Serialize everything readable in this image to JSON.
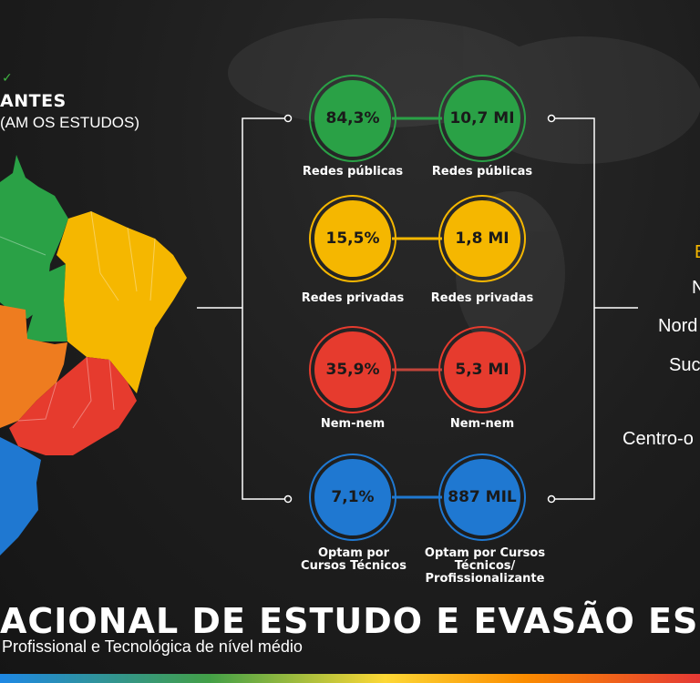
{
  "header": {
    "title": "ANTES",
    "subtitle": "(AM OS ESTUDOS)"
  },
  "colors": {
    "green": "#2aa146",
    "yellow": "#f5b700",
    "red": "#e63b2e",
    "blue": "#1f78d1",
    "orange": "#ee7c1f"
  },
  "rows": [
    {
      "percent": "84,3%",
      "count": "10,7 MI",
      "left_label": "Redes públicas",
      "right_label": "Redes públicas"
    },
    {
      "percent": "15,5%",
      "count": "1,8 MI",
      "left_label": "Redes privadas",
      "right_label": "Redes privadas"
    },
    {
      "percent": "35,9%",
      "count": "5,3 MI",
      "left_label": "Nem-nem",
      "right_label": "Nem-nem"
    },
    {
      "percent": "7,1%",
      "count": "887 MIL",
      "left_label": "Optam por Cursos Técnicos",
      "right_label": "Optam por Cursos Técnicos/ Profissionalizante"
    }
  ],
  "regions": {
    "r0": "E",
    "r1": "N",
    "r2": "Nord",
    "r3": "Suc",
    "r4": "Centro-o"
  },
  "footer": {
    "title": "ACIONAL DE ESTUDO E EVASÃO ESC",
    "subtitle": "Profissional e Tecnológica de nível médio"
  }
}
